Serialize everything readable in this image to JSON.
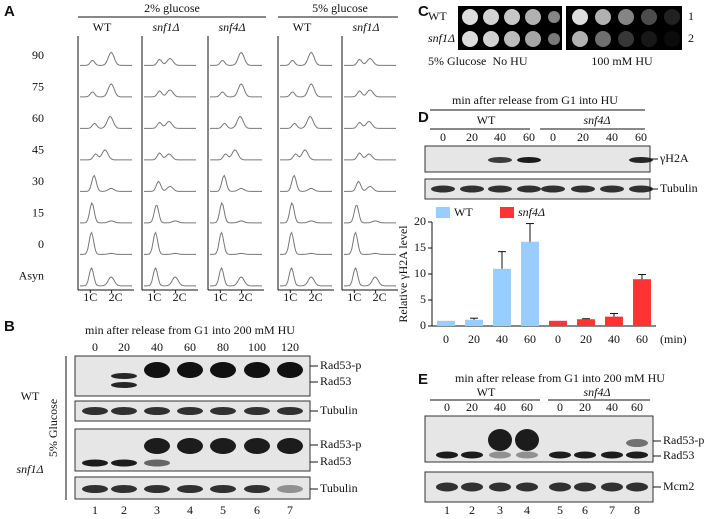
{
  "panel_labels": [
    "A",
    "B",
    "C",
    "D",
    "E"
  ],
  "panel_a": {
    "headers": [
      "2% glucose",
      "5% glucose"
    ],
    "columns": [
      "WT",
      "snf1Δ",
      "snf4Δ",
      "WT",
      "snf1Δ"
    ],
    "rows": [
      "90",
      "75",
      "60",
      "45",
      "30",
      "15",
      "0",
      "Asyn"
    ],
    "x_labels": [
      "1C",
      "2C"
    ]
  },
  "panel_b": {
    "title": "min after release from G1 into 200 mM HU",
    "lanes": [
      0,
      20,
      40,
      60,
      80,
      100,
      120
    ],
    "strains": [
      "WT",
      "snf1Δ"
    ],
    "condition": "5% Glucose",
    "band_labels": [
      "Rad53-p",
      "Rad53",
      "Tubulin",
      "Rad53-p",
      "Rad53",
      "Tubulin"
    ],
    "lane_numbers": [
      1,
      2,
      3,
      4,
      5,
      6,
      7
    ]
  },
  "panel_c": {
    "strains": [
      "WT",
      "snf1Δ"
    ],
    "row_numbers": [
      1,
      2
    ],
    "condition": "5% Glucose",
    "treatments": [
      "No HU",
      "100 mM HU"
    ]
  },
  "panel_d": {
    "title": "min after release from G1 into HU",
    "strains": [
      "WT",
      "snf4Δ"
    ],
    "lanes": [
      0,
      20,
      40,
      60,
      0,
      20,
      40,
      60
    ],
    "band_labels": [
      "γH2A",
      "Tubulin"
    ]
  },
  "chart_data": {
    "type": "bar",
    "y_label": "Relative γH2A level",
    "x_label": "(min)",
    "categories": [
      "0",
      "20",
      "40",
      "60",
      "0",
      "20",
      "40",
      "60"
    ],
    "series": [
      {
        "name": "WT",
        "color": "#99ccff",
        "values": [
          1,
          1.2,
          11,
          16.2,
          null,
          null,
          null,
          null
        ],
        "errors": [
          0,
          0.3,
          3.3,
          3.5,
          null,
          null,
          null,
          null
        ]
      },
      {
        "name": "snf4Δ",
        "color": "#ff3333",
        "values": [
          null,
          null,
          null,
          null,
          1,
          1.3,
          1.8,
          9
        ],
        "errors": [
          null,
          null,
          null,
          null,
          0,
          0.1,
          0.6,
          0.9
        ]
      }
    ],
    "ylim": [
      0,
      20
    ],
    "yticks": [
      0,
      5,
      10,
      15,
      20
    ]
  },
  "panel_e": {
    "title": "min after release from G1 into 200 mM HU",
    "strains": [
      "WT",
      "snf4Δ"
    ],
    "lanes": [
      0,
      20,
      40,
      60,
      0,
      20,
      40,
      60
    ],
    "band_labels": [
      "Rad53-p",
      "Rad53",
      "Mcm2"
    ],
    "lane_numbers": [
      1,
      2,
      3,
      4,
      5,
      6,
      7,
      8
    ]
  }
}
